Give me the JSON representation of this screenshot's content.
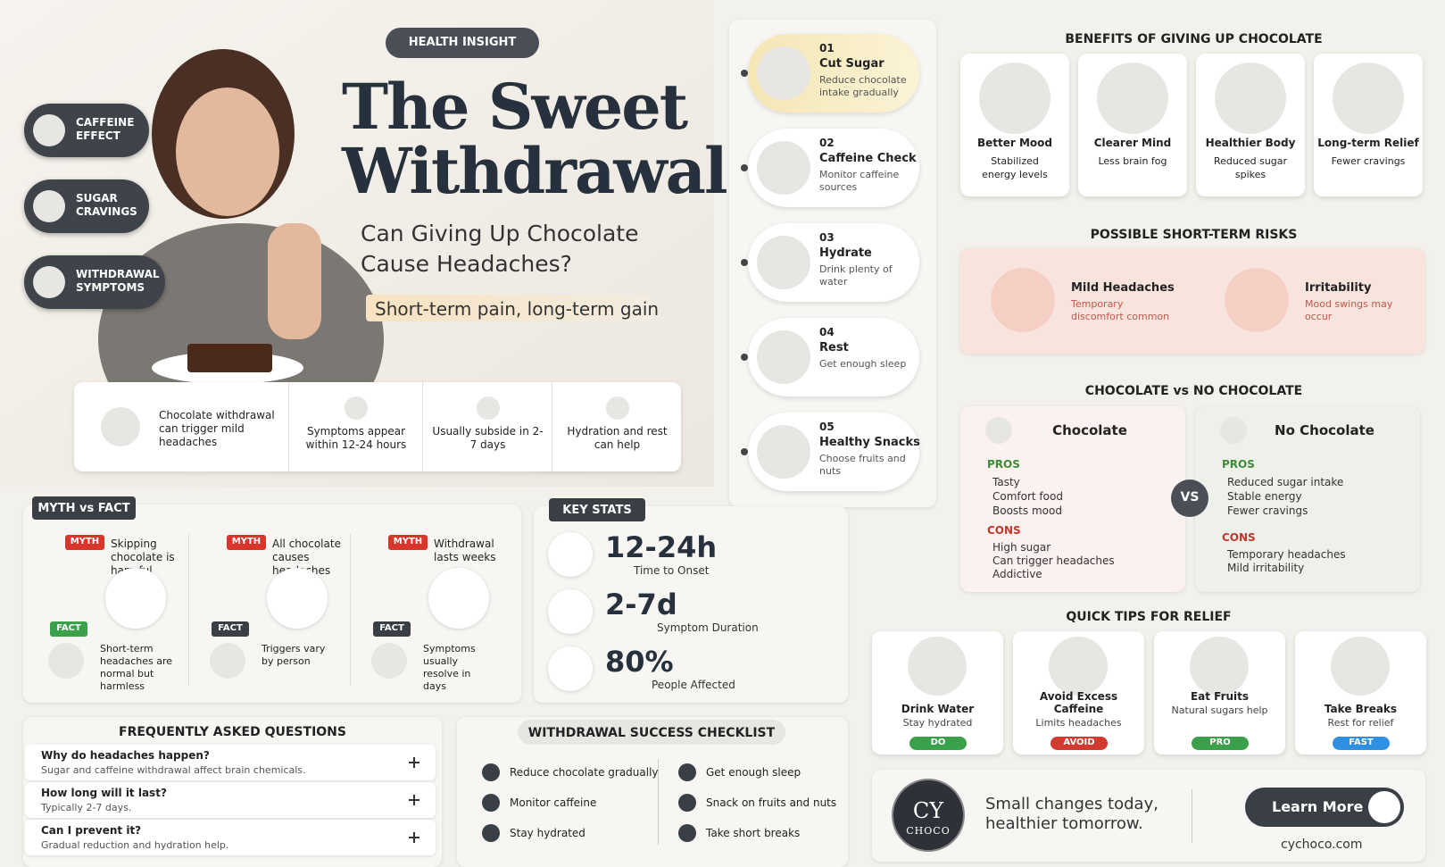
{
  "header": {
    "badge": "HEALTH INSIGHT",
    "title_line1": "The Sweet",
    "title_line2": "Withdrawal",
    "subtitle_line1": "Can Giving Up Chocolate",
    "subtitle_line2": "Cause Headaches?",
    "tagline": "Short-term pain, long-term gain"
  },
  "side_tags": [
    "CAFFEINE EFFECT",
    "SUGAR CRAVINGS",
    "WITHDRAWAL SYMPTOMS"
  ],
  "facts": [
    "Chocolate withdrawal can trigger mild headaches",
    "Symptoms appear within 12-24 hours",
    "Usually subside in 2-7 days",
    "Hydration and rest can help"
  ],
  "steps": [
    {
      "number": "01",
      "title": "Cut Sugar",
      "text": "Reduce chocolate intake gradually"
    },
    {
      "number": "02",
      "title": "Caffeine Check",
      "text": "Monitor caffeine sources"
    },
    {
      "number": "03",
      "title": "Hydrate",
      "text": "Drink plenty of water"
    },
    {
      "number": "04",
      "title": "Rest",
      "text": "Get enough sleep"
    },
    {
      "number": "05",
      "title": "Healthy Snacks",
      "text": "Choose fruits and nuts"
    }
  ],
  "benefits": {
    "title": "BENEFITS OF GIVING UP CHOCOLATE",
    "items": [
      {
        "title": "Better Mood",
        "text": "Stabilized energy levels"
      },
      {
        "title": "Clearer Mind",
        "text": "Less brain fog"
      },
      {
        "title": "Healthier Body",
        "text": "Reduced sugar spikes"
      },
      {
        "title": "Long-term Relief",
        "text": "Fewer cravings"
      }
    ]
  },
  "risks": {
    "title": "POSSIBLE SHORT-TERM RISKS",
    "items": [
      {
        "title": "Mild Headaches",
        "text": "Temporary discomfort common"
      },
      {
        "title": "Irritability",
        "text": "Mood swings may occur"
      }
    ]
  },
  "comparison": {
    "title": "CHOCOLATE vs NO CHOCOLATE",
    "vs": "VS",
    "panels": [
      {
        "title": "Chocolate",
        "pros_label": "PROS",
        "pros": [
          "Tasty",
          "Comfort food",
          "Boosts mood"
        ],
        "cons_label": "CONS",
        "cons": [
          "High sugar",
          "Can trigger headaches",
          "Addictive"
        ]
      },
      {
        "title": "No Chocolate",
        "pros_label": "PROS",
        "pros": [
          "Reduced sugar intake",
          "Stable energy",
          "Fewer cravings"
        ],
        "cons_label": "CONS",
        "cons": [
          "Temporary headaches",
          "Mild irritability"
        ]
      }
    ]
  },
  "tips": {
    "title": "QUICK TIPS FOR RELIEF",
    "items": [
      {
        "title": "Drink Water",
        "text": "Stay hydrated",
        "tag": "DO"
      },
      {
        "title": "Avoid Excess Caffeine",
        "text": "Limits headaches",
        "tag": "AVOID"
      },
      {
        "title": "Eat Fruits",
        "text": "Natural sugars help",
        "tag": "PRO"
      },
      {
        "title": "Take Breaks",
        "text": "Rest for relief",
        "tag": "FAST"
      }
    ]
  },
  "myth_fact": {
    "title": "MYTH vs FACT",
    "items": [
      {
        "myth_label": "MYTH",
        "myth": "Skipping chocolate is harmful",
        "fact_label": "FACT",
        "fact": "Short-term headaches are normal but harmless"
      },
      {
        "myth_label": "MYTH",
        "myth": "All chocolate causes headaches",
        "fact_label": "FACT",
        "fact": "Triggers vary by person"
      },
      {
        "myth_label": "MYTH",
        "myth": "Withdrawal lasts weeks",
        "fact_label": "FACT",
        "fact": "Symptoms usually resolve in days"
      }
    ]
  },
  "key_stats": {
    "title": "KEY STATS",
    "items": [
      {
        "value": "12-24h",
        "label": "Time to Onset"
      },
      {
        "value": "2-7d",
        "label": "Symptom Duration"
      },
      {
        "value": "80%",
        "label": "People Affected"
      }
    ]
  },
  "faq": {
    "title": "FREQUENTLY ASKED QUESTIONS",
    "items": [
      {
        "question": "Why do headaches happen?",
        "answer": "Sugar and caffeine withdrawal affect brain chemicals."
      },
      {
        "question": "How long will it last?",
        "answer": "Typically 2-7 days."
      },
      {
        "question": "Can I prevent it?",
        "answer": "Gradual reduction and hydration help."
      }
    ]
  },
  "checklist": {
    "title": "WITHDRAWAL SUCCESS CHECKLIST",
    "items": [
      "Reduce chocolate gradually",
      "Monitor caffeine",
      "Stay hydrated",
      "Get enough sleep",
      "Snack on fruits and nuts",
      "Take short breaks"
    ]
  },
  "footer": {
    "logo_top": "CY",
    "logo_bottom": "CHOCO",
    "message_line1": "Small changes today,",
    "message_line2": "healthier tomorrow.",
    "button": "Learn More",
    "url": "cychoco.com"
  }
}
